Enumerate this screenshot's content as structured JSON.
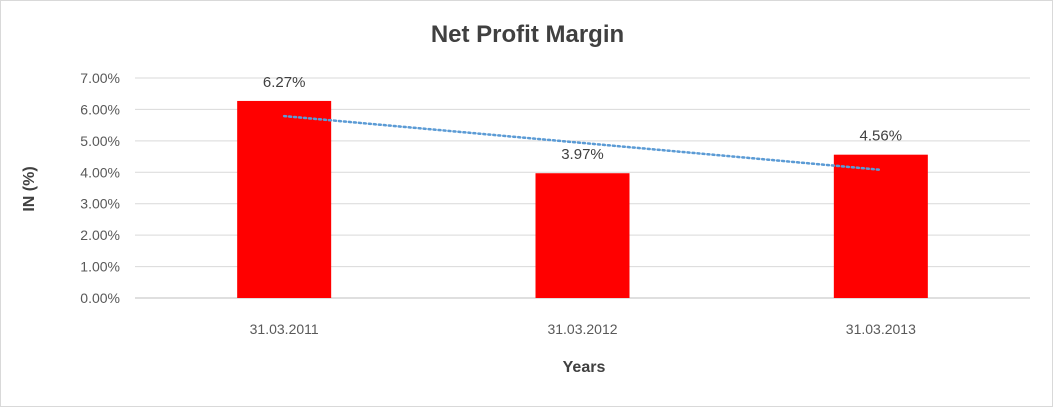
{
  "chart_data": {
    "type": "bar",
    "title": "Net Profit Margin",
    "xlabel": "Years",
    "ylabel": "IN (%)",
    "categories": [
      "31.03.2011",
      "31.03.2012",
      "31.03.2013"
    ],
    "values": [
      6.27,
      3.97,
      4.56
    ],
    "data_labels": [
      "6.27%",
      "3.97%",
      "4.56%"
    ],
    "ylim": [
      0,
      7
    ],
    "yticks": [
      0,
      1,
      2,
      3,
      4,
      5,
      6,
      7
    ],
    "ytick_labels": [
      "0.00%",
      "1.00%",
      "2.00%",
      "3.00%",
      "4.00%",
      "5.00%",
      "6.00%",
      "7.00%"
    ],
    "trendline": {
      "type": "linear",
      "style": "dotted",
      "color": "#5b9bd5"
    },
    "bar_color": "#ff0000",
    "grid": true,
    "legend": "none"
  }
}
